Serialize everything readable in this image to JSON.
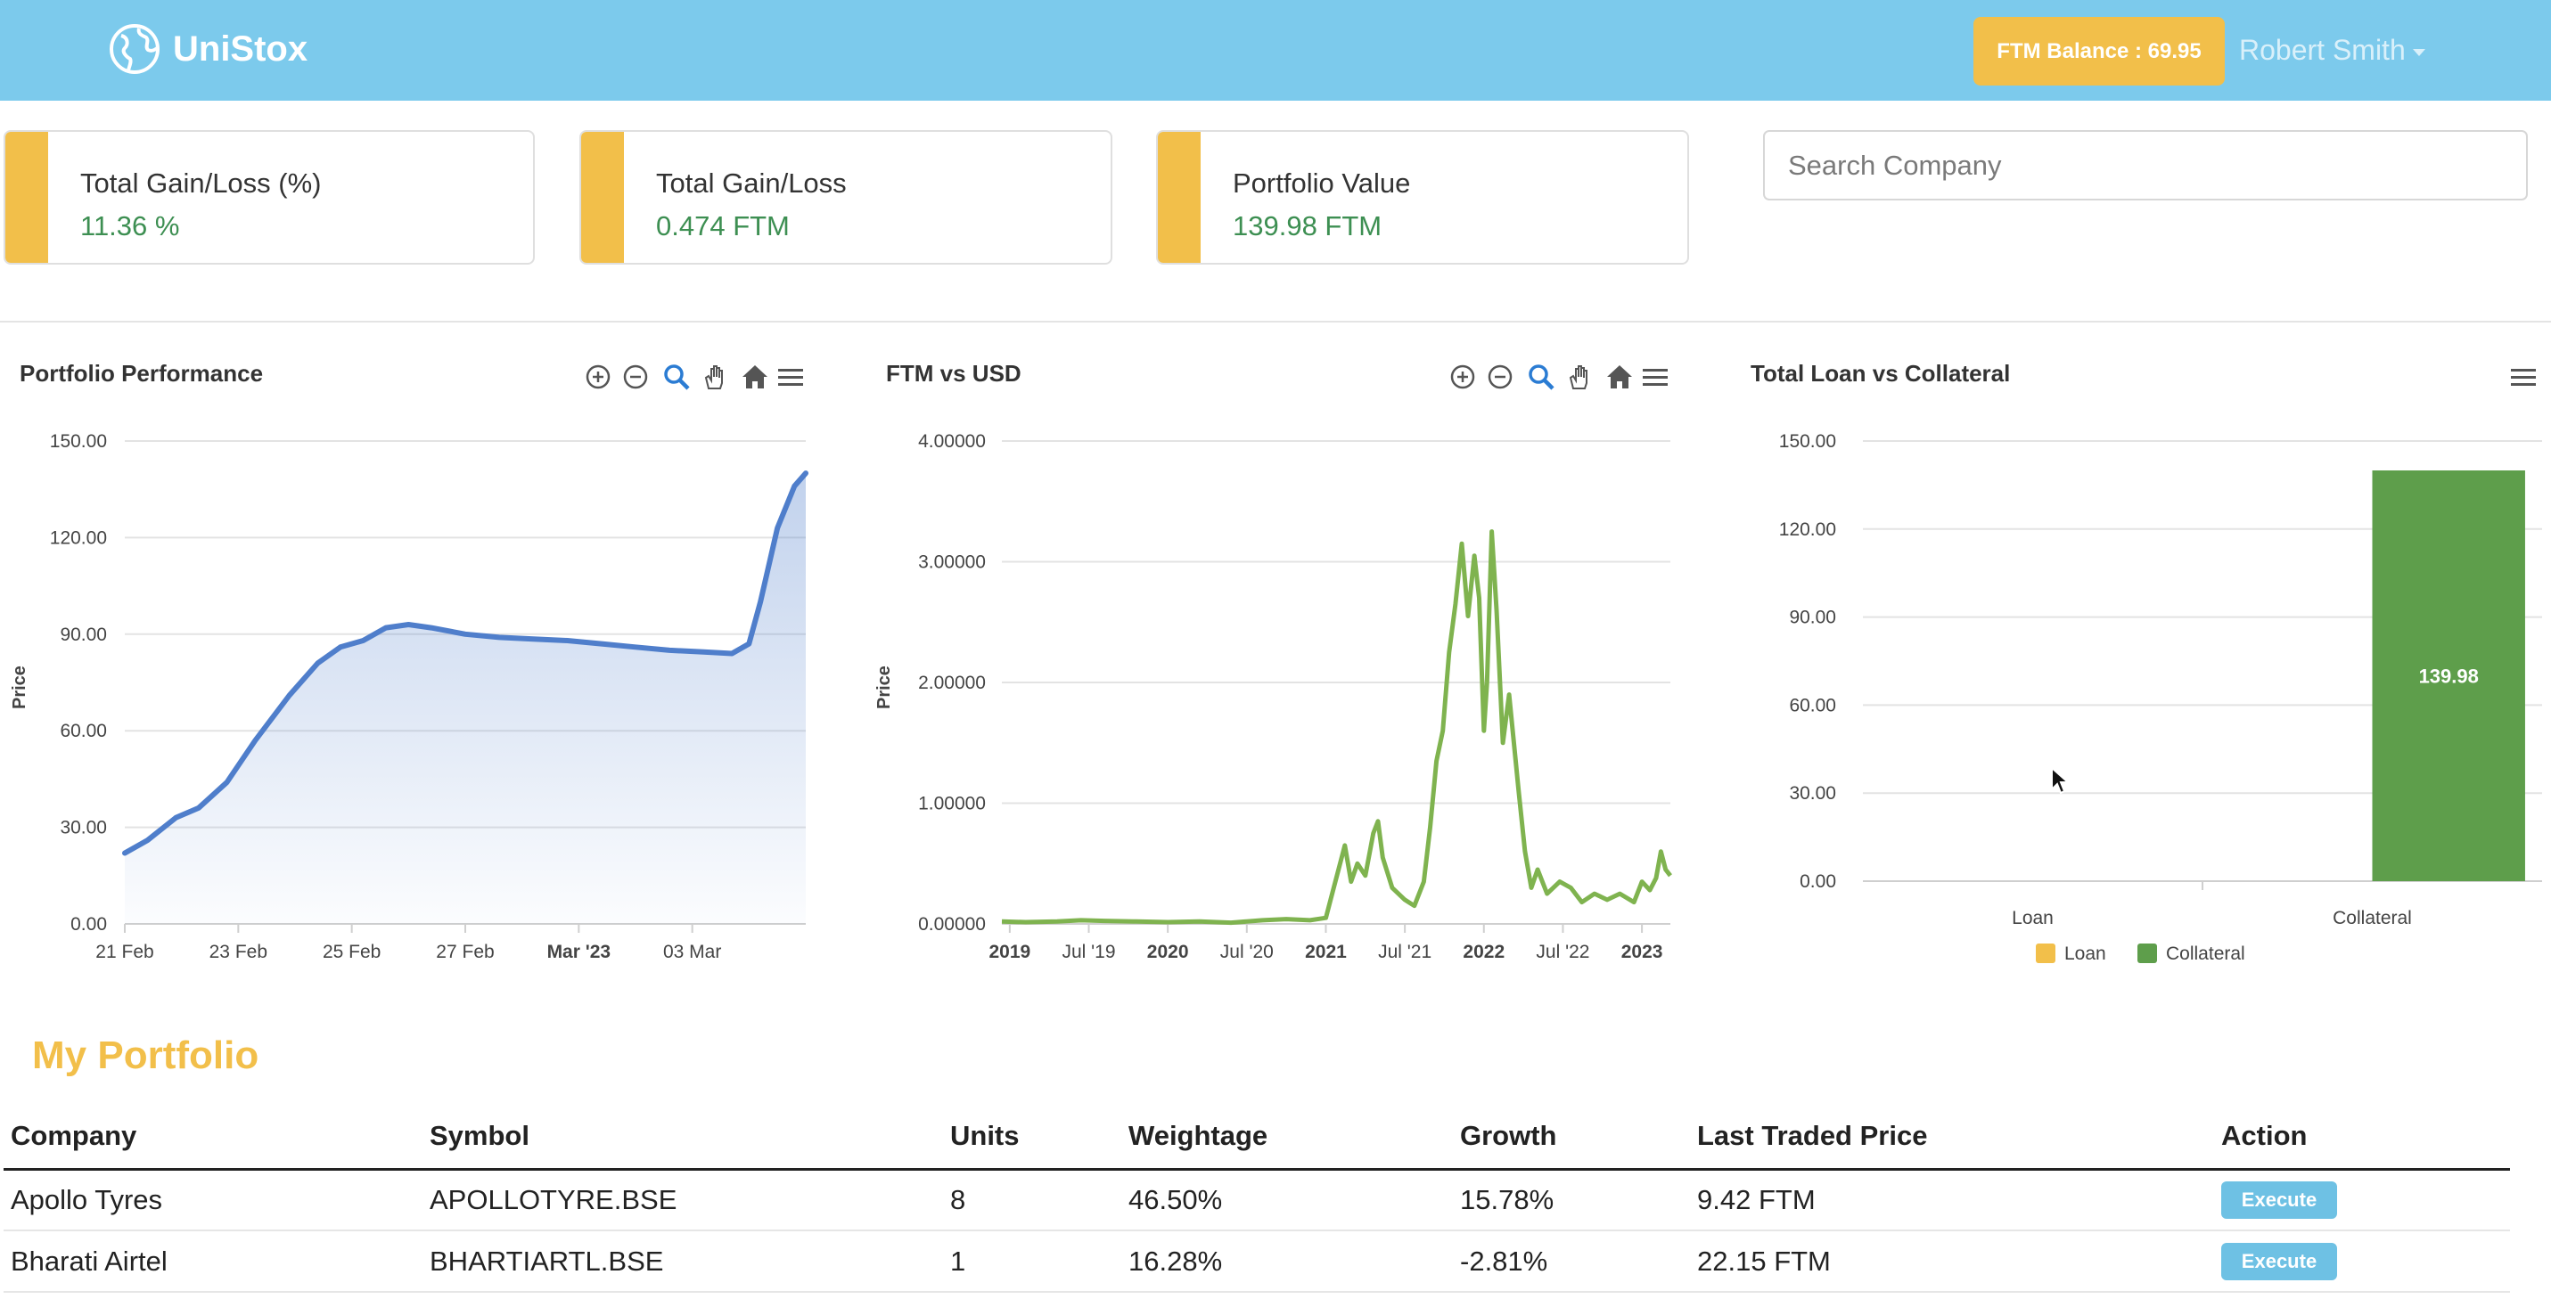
{
  "navbar": {
    "brand": "UniStox",
    "balance_label": "FTM Balance : 69.95",
    "user_name": "Robert Smith"
  },
  "stats": [
    {
      "label": "Total Gain/Loss (%)",
      "value": "11.36 %"
    },
    {
      "label": "Total Gain/Loss",
      "value": "0.474 FTM"
    },
    {
      "label": "Portfolio Value",
      "value": "139.98 FTM"
    }
  ],
  "search": {
    "placeholder": "Search Company",
    "value": ""
  },
  "colors": {
    "navbar": "#7ccaec",
    "accent": "#f2bf4a",
    "gain": "#3d8f52",
    "line_blue": "#4f7ecb",
    "line_green": "#7fb34f",
    "bar_green": "#5e9e4b",
    "button": "#6ec1e4"
  },
  "toolbar_icons": [
    "zoom-in-icon",
    "zoom-out-icon",
    "magnifier-icon",
    "pan-hand-icon",
    "home-icon",
    "menu-icon"
  ],
  "chart_data": [
    {
      "type": "area",
      "title": "Portfolio Performance",
      "ylabel": "Price",
      "xlabel": "",
      "ylim": [
        0,
        150
      ],
      "y_ticks": [
        "0.00",
        "30.00",
        "60.00",
        "90.00",
        "120.00",
        "150.00"
      ],
      "x_ticks": [
        "21 Feb",
        "23 Feb",
        "25 Feb",
        "27 Feb",
        "Mar '23",
        "03 Mar"
      ],
      "x_tick_days": [
        0,
        2,
        4,
        6,
        8,
        10
      ],
      "bold_x_ticks": [
        "Mar '23"
      ],
      "xlim_days": [
        0,
        12
      ],
      "series": [
        {
          "x_days": [
            0,
            0.4,
            0.9,
            1.3,
            1.8,
            2.3,
            2.9,
            3.4,
            3.8,
            4.2,
            4.6,
            5.0,
            5.4,
            6.0,
            6.6,
            7.2,
            7.8,
            8.4,
            9.0,
            9.6,
            10.2,
            10.7,
            11.0,
            11.2,
            11.5,
            11.8,
            12.0
          ],
          "values": [
            22,
            26,
            33,
            36,
            44,
            57,
            71,
            81,
            86,
            88,
            92,
            93,
            92,
            90,
            89,
            88.5,
            88,
            87,
            86,
            85,
            84.5,
            84,
            87,
            100,
            123,
            136,
            140
          ]
        }
      ]
    },
    {
      "type": "line",
      "title": "FTM vs USD",
      "ylabel": "Price",
      "xlabel": "",
      "ylim": [
        0,
        4
      ],
      "y_ticks": [
        "0.00000",
        "1.00000",
        "2.00000",
        "3.00000",
        "4.00000"
      ],
      "x_ticks": [
        "2019",
        "Jul '19",
        "2020",
        "Jul '20",
        "2021",
        "Jul '21",
        "2022",
        "Jul '22",
        "2023"
      ],
      "bold_x_ticks": [
        "2019",
        "2020",
        "2021",
        "2022",
        "2023"
      ],
      "xlim_years": [
        2018.95,
        2023.18
      ],
      "series": [
        {
          "x_years": [
            2018.95,
            2019.1,
            2019.3,
            2019.45,
            2019.6,
            2019.8,
            2020.0,
            2020.2,
            2020.4,
            2020.6,
            2020.75,
            2020.9,
            2021.0,
            2021.03,
            2021.08,
            2021.12,
            2021.16,
            2021.2,
            2021.25,
            2021.3,
            2021.33,
            2021.36,
            2021.42,
            2021.5,
            2021.56,
            2021.62,
            2021.66,
            2021.7,
            2021.74,
            2021.78,
            2021.82,
            2021.86,
            2021.9,
            2021.94,
            2021.97,
            2022.0,
            2022.02,
            2022.05,
            2022.08,
            2022.12,
            2022.16,
            2022.22,
            2022.26,
            2022.3,
            2022.34,
            2022.4,
            2022.48,
            2022.55,
            2022.62,
            2022.7,
            2022.78,
            2022.86,
            2022.95,
            2023.0,
            2023.05,
            2023.09,
            2023.12,
            2023.15,
            2023.18
          ],
          "values": [
            0.02,
            0.015,
            0.02,
            0.03,
            0.025,
            0.02,
            0.015,
            0.02,
            0.01,
            0.03,
            0.04,
            0.03,
            0.05,
            0.2,
            0.45,
            0.65,
            0.35,
            0.5,
            0.4,
            0.75,
            0.85,
            0.55,
            0.3,
            0.2,
            0.15,
            0.35,
            0.8,
            1.35,
            1.6,
            2.25,
            2.65,
            3.15,
            2.55,
            3.05,
            2.7,
            1.6,
            2.0,
            3.25,
            2.6,
            1.5,
            1.9,
            1.1,
            0.6,
            0.3,
            0.45,
            0.25,
            0.35,
            0.3,
            0.18,
            0.25,
            0.2,
            0.25,
            0.18,
            0.35,
            0.28,
            0.38,
            0.6,
            0.45,
            0.4
          ]
        }
      ]
    },
    {
      "type": "bar",
      "title": "Total Loan vs Collateral",
      "ylabel": "",
      "xlabel": "",
      "ylim": [
        0,
        150
      ],
      "y_ticks": [
        "0.00",
        "30.00",
        "60.00",
        "90.00",
        "120.00",
        "150.00"
      ],
      "categories": [
        "Loan",
        "Collateral"
      ],
      "series": [
        {
          "name": "Loan",
          "color": "#f2bf4a",
          "values": [
            0,
            0
          ]
        },
        {
          "name": "Collateral",
          "color": "#5e9e4b",
          "values": [
            0,
            139.98
          ]
        }
      ],
      "data_labels": [
        "139.98"
      ],
      "legend": [
        "Loan",
        "Collateral"
      ],
      "legend_position": "bottom"
    }
  ],
  "portfolio": {
    "title": "My Portfolio",
    "columns": [
      "Company",
      "Symbol",
      "Units",
      "Weightage",
      "Growth",
      "Last Traded Price",
      "Action"
    ],
    "rows": [
      {
        "company": "Apollo Tyres",
        "symbol": "APOLLOTYRE.BSE",
        "units": "8",
        "weightage": "46.50%",
        "growth": "15.78%",
        "ltp": "9.42 FTM",
        "action": "Execute"
      },
      {
        "company": "Bharati Airtel",
        "symbol": "BHARTIARTL.BSE",
        "units": "1",
        "weightage": "16.28%",
        "growth": "-2.81%",
        "ltp": "22.15 FTM",
        "action": "Execute"
      }
    ]
  }
}
